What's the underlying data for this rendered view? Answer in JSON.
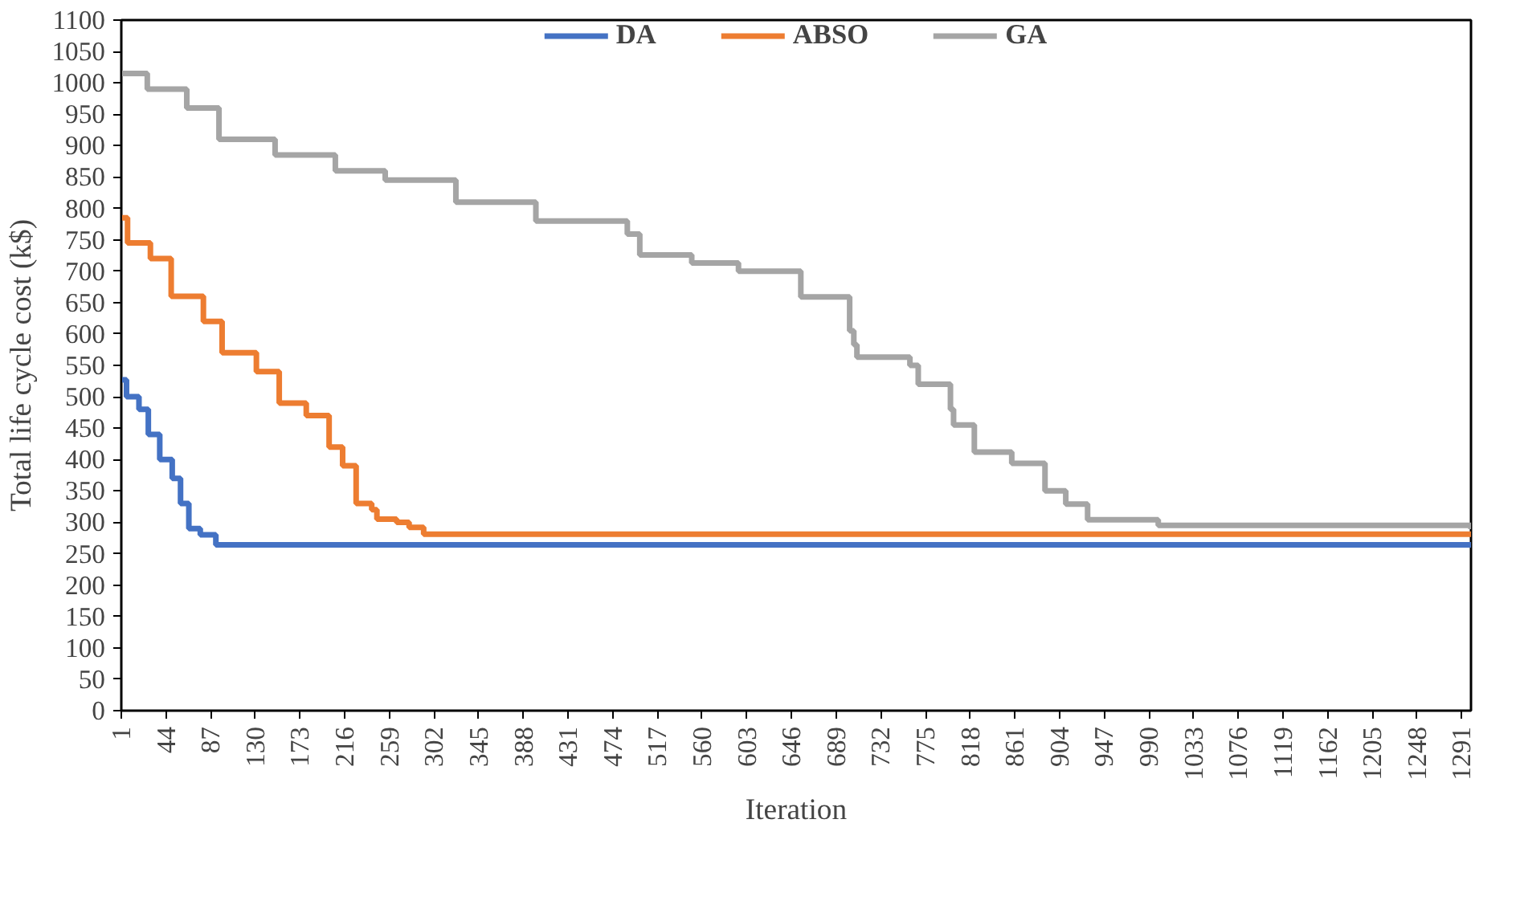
{
  "chart_data": {
    "type": "step",
    "xlabel": "Iteration",
    "ylabel": "Total life cycle cost (k$)",
    "xlim": [
      1,
      1300
    ],
    "xticks": [
      1,
      44,
      87,
      130,
      173,
      216,
      259,
      302,
      345,
      388,
      431,
      474,
      517,
      560,
      603,
      646,
      689,
      732,
      775,
      818,
      861,
      904,
      947,
      990,
      1033,
      1076,
      1119,
      1162,
      1205,
      1248,
      1291
    ],
    "ylim": [
      0,
      1100
    ],
    "yticks": [
      0,
      50,
      100,
      150,
      200,
      250,
      300,
      350,
      400,
      450,
      500,
      550,
      600,
      650,
      700,
      750,
      800,
      850,
      900,
      950,
      1000,
      1050,
      1100
    ],
    "grid": false,
    "legend": "top",
    "series": [
      {
        "name": "DA",
        "color": "#4472c4",
        "x": [
          1,
          6,
          18,
          27,
          38,
          50,
          58,
          66,
          77,
          92,
          1300
        ],
        "values": [
          527,
          500,
          480,
          440,
          400,
          370,
          330,
          290,
          280,
          264,
          264
        ]
      },
      {
        "name": "ABSO",
        "color": "#ed7d31",
        "x": [
          1,
          7,
          29,
          49,
          80,
          98,
          131,
          153,
          179,
          201,
          214,
          227,
          242,
          247,
          266,
          278,
          292,
          1300
        ],
        "values": [
          785,
          745,
          720,
          660,
          620,
          570,
          540,
          490,
          470,
          420,
          390,
          330,
          320,
          305,
          300,
          292,
          281,
          281
        ]
      },
      {
        "name": "GA",
        "color": "#a5a5a5",
        "x": [
          1,
          26,
          64,
          95,
          149,
          207,
          255,
          323,
          400,
          488,
          500,
          550,
          595,
          655,
          702,
          706,
          709,
          760,
          768,
          799,
          802,
          822,
          858,
          890,
          910,
          931,
          999,
          1300
        ],
        "values": [
          1015,
          990,
          960,
          910,
          885,
          860,
          845,
          810,
          780,
          759,
          726,
          713,
          700,
          659,
          605,
          583,
          563,
          550,
          520,
          480,
          455,
          412,
          394,
          350,
          329,
          304,
          295,
          289
        ]
      }
    ]
  }
}
